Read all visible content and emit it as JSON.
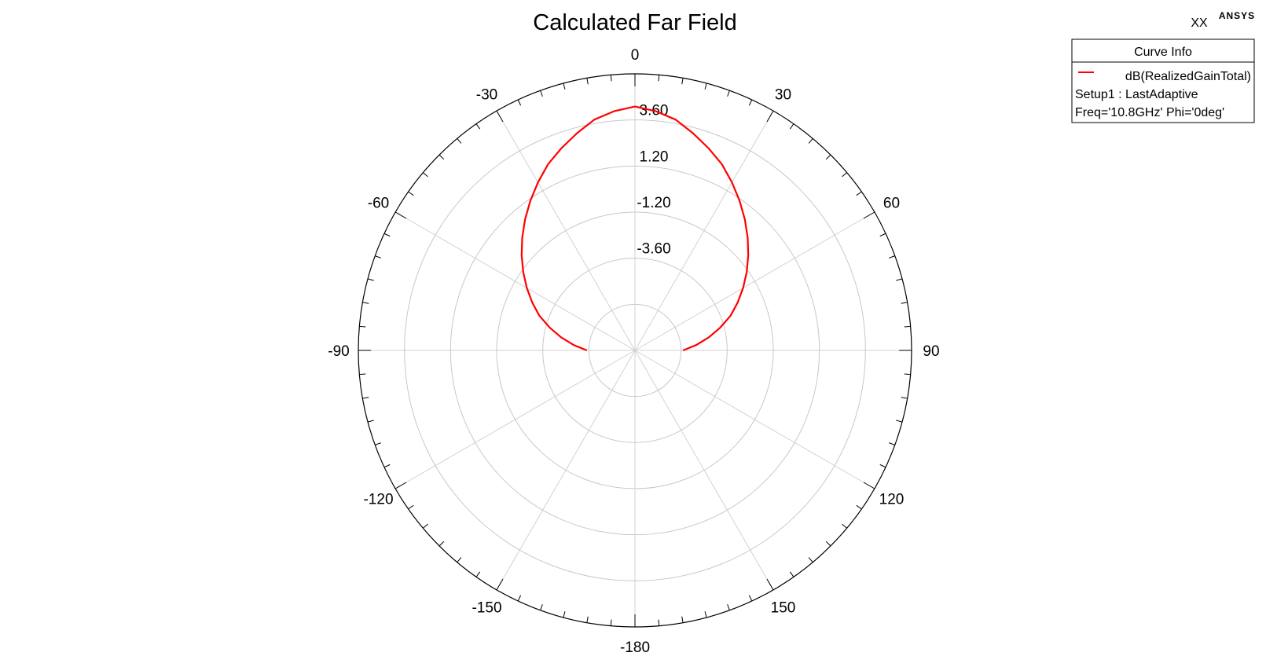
{
  "app": {
    "brand": "ANSYS",
    "project": "XX"
  },
  "chart_data": {
    "type": "polar",
    "title": "Calculated Far Field",
    "angle_direction": "clockwise",
    "angle_zero": "top",
    "angle_labels": [
      {
        "angle": 0,
        "label": "0"
      },
      {
        "angle": 30,
        "label": "30"
      },
      {
        "angle": 60,
        "label": "60"
      },
      {
        "angle": 90,
        "label": "90"
      },
      {
        "angle": 120,
        "label": "120"
      },
      {
        "angle": 150,
        "label": "150"
      },
      {
        "angle": 180,
        "label": "-180"
      },
      {
        "angle": -150,
        "label": "-150"
      },
      {
        "angle": -120,
        "label": "-120"
      },
      {
        "angle": -90,
        "label": "-90"
      },
      {
        "angle": -60,
        "label": "-60"
      },
      {
        "angle": -30,
        "label": "-30"
      }
    ],
    "radial_ticks": [
      {
        "value": -3.6,
        "label": "-3.60"
      },
      {
        "value": -1.2,
        "label": "-1.20"
      },
      {
        "value": 1.2,
        "label": "1.20"
      },
      {
        "value": 3.6,
        "label": "3.60"
      }
    ],
    "rlim": [
      -8.4,
      6.0
    ],
    "grid": true,
    "legend_position": "top-right",
    "legend": {
      "title": "Curve Info",
      "entries": [
        {
          "label": "dB(RealizedGainTotal)",
          "color": "#ff0000"
        },
        {
          "label": "Setup1 : LastAdaptive"
        },
        {
          "label": "Freq='10.8GHz' Phi='0deg'"
        }
      ]
    },
    "series": [
      {
        "color": "#ff0000",
        "theta": [
          -90,
          -85,
          -80,
          -75,
          -70,
          -65,
          -60,
          -55,
          -50,
          -45,
          -40,
          -35,
          -30,
          -25,
          -20,
          -15,
          -10,
          -5,
          0,
          5,
          10,
          15,
          20,
          25,
          30,
          35,
          40,
          45,
          50,
          55,
          60,
          65,
          70,
          75,
          80,
          85,
          90
        ],
        "values": [
          -5.9,
          -5.2,
          -4.5,
          -3.8,
          -3.1,
          -2.5,
          -1.9,
          -1.3,
          -0.7,
          -0.1,
          0.5,
          1.1,
          1.7,
          2.3,
          2.8,
          3.3,
          3.8,
          4.1,
          4.3,
          4.1,
          3.8,
          3.3,
          2.8,
          2.3,
          1.7,
          1.1,
          0.5,
          -0.1,
          -0.7,
          -1.3,
          -1.9,
          -2.5,
          -3.1,
          -3.8,
          -4.5,
          -5.2,
          -5.9
        ]
      }
    ]
  }
}
